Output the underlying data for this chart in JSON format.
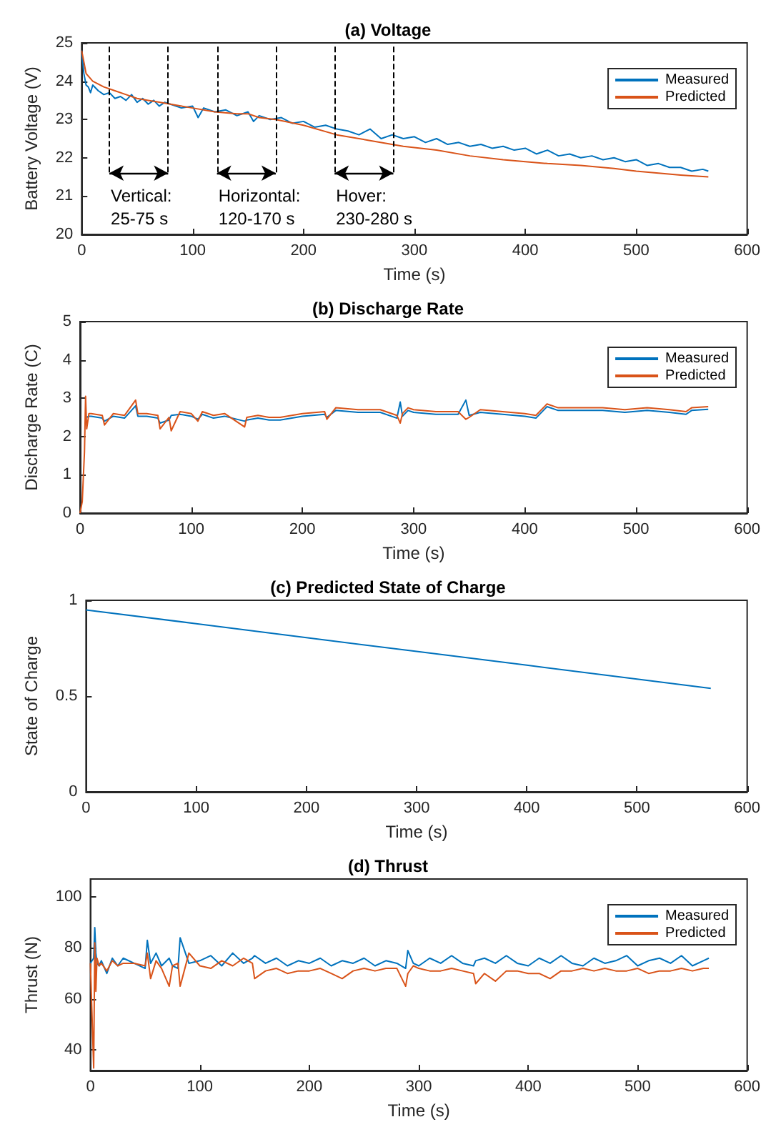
{
  "chart_data": [
    {
      "type": "line",
      "title": "(a) Voltage",
      "xlabel": "Time (s)",
      "ylabel": "Battery Voltage (V)",
      "xlim": [
        0,
        600
      ],
      "xticks": [
        0,
        100,
        200,
        300,
        400,
        500,
        600
      ],
      "ylim": [
        20,
        25
      ],
      "yticks": [
        20,
        21,
        22,
        23,
        24,
        25
      ],
      "legend": "top right",
      "grid": false,
      "ref_lines": [
        {
          "axis": "x",
          "value": 25,
          "line_style": "dashed"
        },
        {
          "axis": "x",
          "value": 78,
          "line_style": "dashed"
        },
        {
          "axis": "x",
          "value": 122,
          "line_style": "dashed"
        },
        {
          "axis": "x",
          "value": 175,
          "line_style": "dashed"
        },
        {
          "axis": "x",
          "value": 228,
          "line_style": "dashed"
        },
        {
          "axis": "x",
          "value": 281,
          "line_style": "dashed"
        }
      ],
      "annotations": [
        "Vertical:\n25-75 s",
        "Horizontal:\n120-170 s",
        "Hover:\n230-280 s"
      ],
      "series": [
        {
          "name": "Measured",
          "color": "#0072bd",
          "x": [
            0,
            2,
            4,
            6,
            8,
            10,
            15,
            20,
            25,
            30,
            35,
            40,
            45,
            50,
            55,
            60,
            65,
            70,
            75,
            80,
            90,
            100,
            105,
            110,
            120,
            130,
            140,
            150,
            155,
            160,
            170,
            180,
            190,
            200,
            210,
            220,
            230,
            240,
            250,
            260,
            270,
            280,
            290,
            300,
            310,
            320,
            330,
            340,
            350,
            360,
            370,
            380,
            390,
            400,
            410,
            420,
            430,
            440,
            450,
            460,
            470,
            480,
            490,
            500,
            510,
            520,
            530,
            540,
            550,
            560,
            565
          ],
          "values": [
            24.8,
            24.2,
            23.9,
            23.85,
            23.7,
            23.9,
            23.75,
            23.65,
            23.7,
            23.55,
            23.6,
            23.5,
            23.65,
            23.45,
            23.55,
            23.4,
            23.5,
            23.35,
            23.45,
            23.4,
            23.3,
            23.35,
            23.05,
            23.3,
            23.2,
            23.25,
            23.1,
            23.2,
            22.95,
            23.1,
            23.0,
            23.05,
            22.9,
            22.95,
            22.8,
            22.85,
            22.75,
            22.7,
            22.6,
            22.75,
            22.5,
            22.6,
            22.5,
            22.55,
            22.4,
            22.5,
            22.35,
            22.4,
            22.3,
            22.35,
            22.25,
            22.3,
            22.2,
            22.25,
            22.1,
            22.2,
            22.05,
            22.1,
            22.0,
            22.05,
            21.95,
            22.0,
            21.9,
            21.95,
            21.8,
            21.85,
            21.75,
            21.75,
            21.65,
            21.7,
            21.65
          ]
        },
        {
          "name": "Predicted",
          "color": "#d95319",
          "x": [
            0,
            2,
            4,
            10,
            20,
            30,
            40,
            50,
            60,
            70,
            80,
            100,
            120,
            140,
            150,
            160,
            175,
            200,
            230,
            260,
            290,
            320,
            350,
            380,
            400,
            420,
            450,
            480,
            500,
            520,
            540,
            565
          ],
          "values": [
            24.8,
            24.5,
            24.2,
            24.0,
            23.85,
            23.75,
            23.65,
            23.55,
            23.5,
            23.45,
            23.4,
            23.3,
            23.2,
            23.15,
            23.15,
            23.05,
            23.0,
            22.85,
            22.6,
            22.45,
            22.3,
            22.2,
            22.05,
            21.95,
            21.9,
            21.85,
            21.8,
            21.72,
            21.65,
            21.6,
            21.55,
            21.5
          ]
        }
      ]
    },
    {
      "type": "line",
      "title": "(b) Discharge Rate",
      "xlabel": "Time (s)",
      "ylabel": "Discharge Rate (C)",
      "xlim": [
        0,
        600
      ],
      "xticks": [
        0,
        100,
        200,
        300,
        400,
        500,
        600
      ],
      "ylim": [
        0,
        5
      ],
      "yticks": [
        0,
        1,
        2,
        3,
        4,
        5
      ],
      "legend": "top right",
      "grid": false,
      "x": [
        0,
        2,
        4,
        5,
        6,
        8,
        10,
        20,
        22,
        30,
        40,
        50,
        52,
        60,
        70,
        72,
        80,
        82,
        90,
        100,
        106,
        110,
        120,
        130,
        148,
        150,
        160,
        170,
        180,
        200,
        220,
        222,
        230,
        250,
        270,
        285,
        288,
        290,
        295,
        300,
        320,
        340,
        347,
        350,
        360,
        380,
        400,
        410,
        420,
        430,
        450,
        470,
        490,
        510,
        530,
        545,
        550,
        565
      ],
      "series": [
        {
          "name": "Measured",
          "color": "#0072bd",
          "values": [
            null,
            null,
            null,
            null,
            2.5,
            2.53,
            2.53,
            2.48,
            2.4,
            2.53,
            2.48,
            2.8,
            2.53,
            2.53,
            2.48,
            2.35,
            2.43,
            2.55,
            2.58,
            2.53,
            2.45,
            2.58,
            2.48,
            2.53,
            2.4,
            2.43,
            2.48,
            2.43,
            2.43,
            2.53,
            2.58,
            2.5,
            2.68,
            2.63,
            2.63,
            2.48,
            2.9,
            2.53,
            2.68,
            2.63,
            2.58,
            2.58,
            2.95,
            2.55,
            2.63,
            2.58,
            2.53,
            2.48,
            2.78,
            2.68,
            2.68,
            2.68,
            2.63,
            2.68,
            2.63,
            2.58,
            2.68,
            2.71
          ]
        },
        {
          "name": "Predicted",
          "color": "#d95319",
          "values": [
            0,
            0.3,
            1.6,
            3.05,
            2.2,
            2.6,
            2.6,
            2.55,
            2.3,
            2.6,
            2.55,
            2.95,
            2.6,
            2.6,
            2.55,
            2.2,
            2.5,
            2.15,
            2.65,
            2.6,
            2.4,
            2.65,
            2.55,
            2.6,
            2.25,
            2.5,
            2.55,
            2.5,
            2.5,
            2.6,
            2.65,
            2.45,
            2.75,
            2.7,
            2.7,
            2.55,
            2.35,
            2.6,
            2.75,
            2.7,
            2.65,
            2.65,
            2.45,
            2.5,
            2.7,
            2.65,
            2.6,
            2.55,
            2.85,
            2.75,
            2.75,
            2.75,
            2.7,
            2.75,
            2.7,
            2.65,
            2.75,
            2.78
          ]
        }
      ]
    },
    {
      "type": "line",
      "title": "(c) Predicted State of Charge",
      "xlabel": "Time (s)",
      "ylabel": "State of Charge",
      "xlim": [
        0,
        600
      ],
      "xticks": [
        0,
        100,
        200,
        300,
        400,
        500,
        600
      ],
      "ylim": [
        0,
        1
      ],
      "yticks": [
        0,
        0.5,
        1
      ],
      "grid": false,
      "series": [
        {
          "color": "#0072bd",
          "x": [
            0,
            100,
            200,
            300,
            400,
            500,
            567
          ],
          "values": [
            0.95,
            0.878,
            0.805,
            0.733,
            0.661,
            0.589,
            0.54
          ]
        }
      ]
    },
    {
      "type": "line",
      "title": "(d) Thrust",
      "xlabel": "Time (s)",
      "ylabel": "Thrust (N)",
      "xlim": [
        0,
        600
      ],
      "xticks": [
        0,
        100,
        200,
        300,
        400,
        500,
        600
      ],
      "ylim": [
        32,
        107
      ],
      "yticks": [
        40,
        60,
        80,
        100
      ],
      "legend": "top right",
      "grid": false,
      "x": [
        0,
        3,
        4,
        5,
        6,
        8,
        10,
        15,
        20,
        25,
        30,
        40,
        50,
        52,
        55,
        60,
        65,
        72,
        75,
        80,
        82,
        90,
        100,
        110,
        120,
        130,
        140,
        148,
        150,
        160,
        170,
        180,
        190,
        200,
        210,
        220,
        230,
        240,
        250,
        260,
        270,
        280,
        288,
        290,
        295,
        300,
        310,
        320,
        330,
        340,
        350,
        352,
        360,
        370,
        380,
        390,
        400,
        410,
        420,
        430,
        440,
        450,
        460,
        470,
        480,
        490,
        500,
        510,
        520,
        530,
        540,
        550,
        560,
        565
      ],
      "series": [
        {
          "name": "Measured",
          "color": "#0072bd",
          "values": [
            74,
            76,
            88,
            78,
            74,
            73,
            75,
            70,
            76,
            73,
            76,
            74,
            72,
            83,
            74,
            78,
            73,
            76,
            73,
            72,
            84,
            74,
            75,
            77,
            73,
            78,
            74,
            76,
            77,
            74,
            76,
            73,
            75,
            74,
            76,
            73,
            75,
            74,
            76,
            73,
            75,
            74,
            72,
            79,
            74,
            73,
            76,
            74,
            77,
            74,
            73,
            75,
            76,
            74,
            77,
            74,
            73,
            76,
            74,
            77,
            74,
            73,
            76,
            74,
            75,
            77,
            73,
            75,
            76,
            74,
            77,
            73,
            75,
            76
          ]
        },
        {
          "name": "Predicted",
          "color": "#d95319",
          "values": [
            74,
            33,
            82,
            63,
            76,
            73,
            74,
            71,
            75,
            73,
            74,
            74,
            73,
            78,
            68,
            75,
            72,
            65,
            73,
            74,
            65,
            78,
            73,
            72,
            75,
            73,
            76,
            74,
            68,
            71,
            72,
            70,
            71,
            71,
            72,
            70,
            68,
            71,
            72,
            71,
            72,
            72,
            65,
            70,
            73,
            72,
            71,
            71,
            72,
            71,
            70,
            66,
            70,
            67,
            71,
            71,
            70,
            70,
            68,
            71,
            71,
            72,
            71,
            72,
            71,
            71,
            72,
            70,
            71,
            71,
            72,
            71,
            72,
            72
          ]
        }
      ]
    }
  ]
}
